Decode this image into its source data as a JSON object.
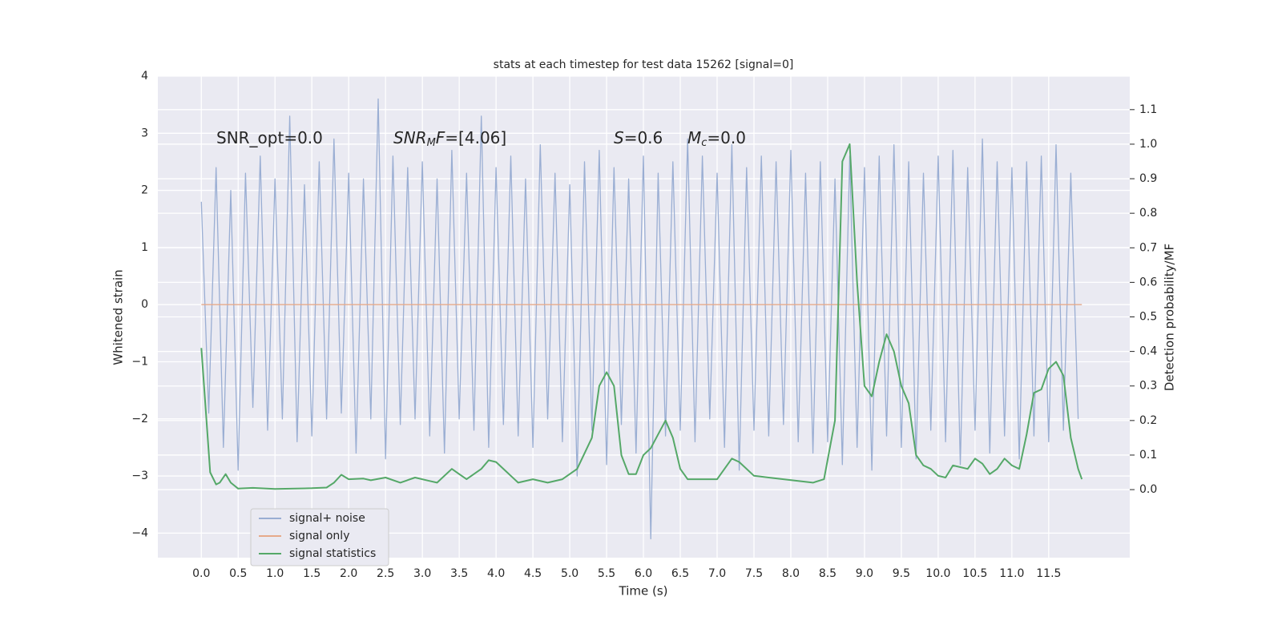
{
  "chart_data": {
    "type": "line",
    "title": "stats at each timestep for test data 15262 [signal=0]",
    "xlabel": "Time (s)",
    "ylabel": "Whitened strain",
    "y2label": "Detection probability/MF",
    "xlim": [
      -0.59,
      12.6
    ],
    "ylim": [
      -4.43,
      4.0
    ],
    "y2lim": [
      -0.197,
      1.197
    ],
    "xticks": [
      {
        "value": 0,
        "label": "0.0"
      },
      {
        "value": 0.5,
        "label": "0.5"
      },
      {
        "value": 1,
        "label": "1.0"
      },
      {
        "value": 1.5,
        "label": "1.5"
      },
      {
        "value": 2,
        "label": "2.0"
      },
      {
        "value": 2.5,
        "label": "2.5"
      },
      {
        "value": 3,
        "label": "3.0"
      },
      {
        "value": 3.5,
        "label": "3.5"
      },
      {
        "value": 4,
        "label": "4.0"
      },
      {
        "value": 4.5,
        "label": "4.5"
      },
      {
        "value": 5,
        "label": "5.0"
      },
      {
        "value": 5.5,
        "label": "5.5"
      },
      {
        "value": 6,
        "label": "6.0"
      },
      {
        "value": 6.5,
        "label": "6.5"
      },
      {
        "value": 7,
        "label": "7.0"
      },
      {
        "value": 7.5,
        "label": "7.5"
      },
      {
        "value": 8,
        "label": "8.0"
      },
      {
        "value": 8.5,
        "label": "8.5"
      },
      {
        "value": 9,
        "label": "9.0"
      },
      {
        "value": 9.5,
        "label": "9.5"
      },
      {
        "value": 10,
        "label": "10.0"
      },
      {
        "value": 10.5,
        "label": "10.5"
      },
      {
        "value": 11,
        "label": "11.0"
      },
      {
        "value": 11.5,
        "label": "11.5"
      }
    ],
    "yticks": [
      {
        "value": -4,
        "label": "−4"
      },
      {
        "value": -3,
        "label": "−3"
      },
      {
        "value": -2,
        "label": "−2"
      },
      {
        "value": -1,
        "label": "−1"
      },
      0,
      1,
      2,
      3,
      4
    ],
    "y2ticks": [
      {
        "value": 0,
        "label": "0.0"
      },
      {
        "value": 0.1,
        "label": "0.1"
      },
      {
        "value": 0.2,
        "label": "0.2"
      },
      {
        "value": 0.3,
        "label": "0.3"
      },
      {
        "value": 0.4,
        "label": "0.4"
      },
      {
        "value": 0.5,
        "label": "0.5"
      },
      {
        "value": 0.6,
        "label": "0.6"
      },
      {
        "value": 0.7,
        "label": "0.7"
      },
      {
        "value": 0.8,
        "label": "0.8"
      },
      {
        "value": 0.9,
        "label": "0.9"
      },
      {
        "value": 1.0,
        "label": "1.0"
      },
      {
        "value": 1.1,
        "label": "1.1"
      }
    ],
    "grid": true,
    "legend": "lower left",
    "annotations": [
      [
        {
          "text": "SNR_opt=0.0"
        }
      ],
      [
        {
          "text": "SNR",
          "italic": true
        },
        {
          "text": "M",
          "italic": true,
          "sub": true
        },
        {
          "text": "F",
          "italic": true
        },
        {
          "text": "=[4.06]"
        }
      ],
      [
        {
          "text": "S",
          "italic": true
        },
        {
          "text": "=0.6"
        }
      ],
      [
        {
          "text": "M",
          "italic": true
        },
        {
          "text": "c",
          "italic": true,
          "sub": true
        },
        {
          "text": "=0.0"
        }
      ]
    ],
    "series": [
      {
        "name": "signal+ noise",
        "color": "#9aaed3",
        "x": [
          0,
          0.1,
          0.2,
          0.3,
          0.4,
          0.5,
          0.6,
          0.7,
          0.8,
          0.9,
          1,
          1.1,
          1.2,
          1.3,
          1.4,
          1.5,
          1.6,
          1.7,
          1.8,
          1.9,
          2,
          2.1,
          2.2,
          2.3,
          2.4,
          2.5,
          2.6,
          2.7,
          2.8,
          2.9,
          3,
          3.1,
          3.2,
          3.3,
          3.4,
          3.5,
          3.6,
          3.7,
          3.8,
          3.9,
          4,
          4.1,
          4.2,
          4.3,
          4.4,
          4.5,
          4.6,
          4.7,
          4.8,
          4.9,
          5,
          5.1,
          5.2,
          5.3,
          5.4,
          5.5,
          5.6,
          5.7,
          5.8,
          5.9,
          6,
          6.1,
          6.2,
          6.3,
          6.4,
          6.5,
          6.6,
          6.7,
          6.8,
          6.9,
          7,
          7.1,
          7.2,
          7.3,
          7.4,
          7.5,
          7.6,
          7.7,
          7.8,
          7.9,
          8,
          8.1,
          8.2,
          8.3,
          8.4,
          8.5,
          8.6,
          8.7,
          8.8,
          8.9,
          9,
          9.1,
          9.2,
          9.3,
          9.4,
          9.5,
          9.6,
          9.7,
          9.8,
          9.9,
          10,
          10.1,
          10.2,
          10.3,
          10.4,
          10.5,
          10.6,
          10.7,
          10.8,
          10.9,
          11,
          11.1,
          11.2,
          11.3,
          11.4,
          11.5,
          11.6,
          11.7,
          11.8,
          11.9
        ],
        "values": [
          1.8,
          -1.9,
          2.4,
          -2.5,
          2.0,
          -2.9,
          2.3,
          -1.8,
          2.6,
          -2.2,
          2.2,
          -2.0,
          3.3,
          -2.4,
          2.1,
          -2.3,
          2.5,
          -2.0,
          2.9,
          -1.9,
          2.3,
          -2.6,
          2.2,
          -2.0,
          3.6,
          -2.7,
          2.6,
          -2.1,
          2.4,
          -2.0,
          2.5,
          -2.3,
          2.2,
          -2.6,
          2.7,
          -2.0,
          2.3,
          -2.2,
          3.3,
          -2.5,
          2.4,
          -2.1,
          2.6,
          -2.3,
          2.2,
          -2.5,
          2.8,
          -2.0,
          2.3,
          -2.4,
          2.1,
          -3.0,
          2.5,
          -2.2,
          2.7,
          -2.8,
          2.4,
          -2.1,
          2.2,
          -2.6,
          2.6,
          -4.1,
          2.3,
          -2.3,
          2.5,
          -2.2,
          2.9,
          -2.4,
          2.6,
          -2.0,
          2.3,
          -2.5,
          2.8,
          -2.9,
          2.4,
          -2.2,
          2.6,
          -2.3,
          2.5,
          -2.1,
          2.7,
          -2.4,
          2.3,
          -2.6,
          2.5,
          -2.4,
          2.2,
          -2.8,
          2.6,
          -2.5,
          2.4,
          -2.9,
          2.6,
          -2.3,
          2.8,
          -2.5,
          2.5,
          -2.7,
          2.3,
          -2.2,
          2.6,
          -2.4,
          2.7,
          -2.8,
          2.4,
          -2.2,
          2.9,
          -2.6,
          2.5,
          -2.3,
          2.4,
          -2.7,
          2.5,
          -2.3,
          2.6,
          -2.4,
          2.8,
          -2.2,
          2.3,
          -2.0
        ]
      },
      {
        "name": "signal only",
        "color": "#e6a98a",
        "x": [
          0,
          11.95
        ],
        "values": [
          0,
          0
        ]
      },
      {
        "name": "signal statistics",
        "color": "#55a868",
        "axis": "y2",
        "x": [
          0,
          0.12,
          0.2,
          0.25,
          0.33,
          0.4,
          0.5,
          0.7,
          1.0,
          1.5,
          1.7,
          1.8,
          1.9,
          2.0,
          2.2,
          2.3,
          2.5,
          2.7,
          2.9,
          3.1,
          3.2,
          3.4,
          3.5,
          3.6,
          3.8,
          3.9,
          4.0,
          4.2,
          4.3,
          4.5,
          4.7,
          4.9,
          5.1,
          5.3,
          5.4,
          5.5,
          5.6,
          5.7,
          5.8,
          5.9,
          6.0,
          6.1,
          6.3,
          6.4,
          6.5,
          6.6,
          6.8,
          7.0,
          7.2,
          7.3,
          7.5,
          7.7,
          7.9,
          8.1,
          8.3,
          8.45,
          8.6,
          8.7,
          8.8,
          8.9,
          9.0,
          9.1,
          9.2,
          9.3,
          9.4,
          9.5,
          9.6,
          9.7,
          9.8,
          9.9,
          10.0,
          10.1,
          10.2,
          10.4,
          10.5,
          10.6,
          10.7,
          10.8,
          10.9,
          11.0,
          11.1,
          11.2,
          11.3,
          11.4,
          11.5,
          11.6,
          11.7,
          11.8,
          11.9,
          11.95
        ],
        "values": [
          0.41,
          0.05,
          0.015,
          0.02,
          0.045,
          0.02,
          0.003,
          0.005,
          0.002,
          0.004,
          0.006,
          0.02,
          0.043,
          0.03,
          0.032,
          0.027,
          0.035,
          0.02,
          0.035,
          0.025,
          0.02,
          0.06,
          0.045,
          0.03,
          0.06,
          0.085,
          0.08,
          0.04,
          0.02,
          0.03,
          0.02,
          0.03,
          0.06,
          0.15,
          0.3,
          0.34,
          0.3,
          0.1,
          0.045,
          0.045,
          0.1,
          0.12,
          0.2,
          0.15,
          0.06,
          0.03,
          0.03,
          0.03,
          0.09,
          0.08,
          0.04,
          0.035,
          0.03,
          0.025,
          0.02,
          0.03,
          0.2,
          0.95,
          1.0,
          0.6,
          0.3,
          0.27,
          0.37,
          0.45,
          0.4,
          0.3,
          0.25,
          0.1,
          0.07,
          0.06,
          0.04,
          0.035,
          0.07,
          0.06,
          0.09,
          0.075,
          0.045,
          0.06,
          0.09,
          0.07,
          0.06,
          0.16,
          0.28,
          0.29,
          0.35,
          0.37,
          0.33,
          0.15,
          0.06,
          0.03
        ]
      }
    ]
  }
}
